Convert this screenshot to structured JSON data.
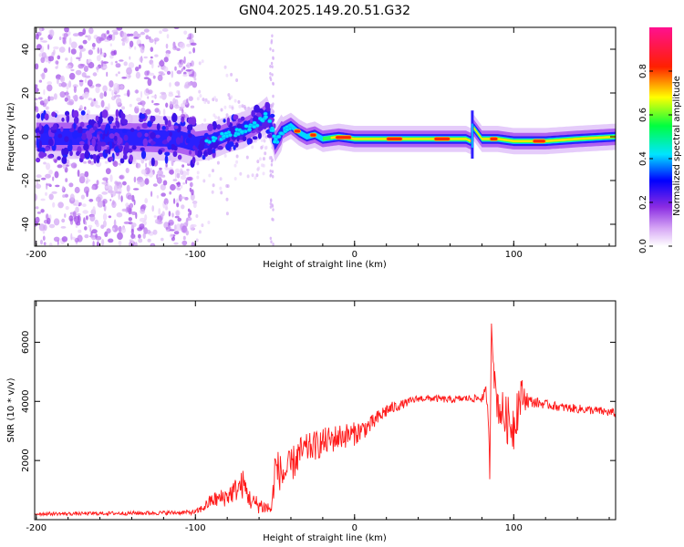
{
  "title": "GN04.2025.149.20.51.G32",
  "chart_data": [
    {
      "type": "heatmap",
      "xlabel": "Height of straight line (km)",
      "ylabel": "Frequency (Hz)",
      "xlim": [
        -201,
        164
      ],
      "ylim": [
        -50,
        50
      ],
      "x_ticks": [
        -200,
        -100,
        0,
        100
      ],
      "y_ticks": [
        -40,
        -20,
        0,
        20,
        40
      ],
      "colorbar": {
        "label": "Normalized spectral amplitude",
        "range": [
          0,
          1
        ],
        "ticks": [
          "0.0",
          "0.2",
          "0.4",
          "0.6",
          "0.8"
        ],
        "colormap": [
          "#ffffff",
          "#a020f0",
          "#0000ff",
          "#00ffff",
          "#00ff00",
          "#ffff00",
          "#ff0000",
          "#ff0080"
        ]
      },
      "ridge": {
        "x": [
          -200,
          -150,
          -110,
          -100,
          -90,
          -80,
          -70,
          -60,
          -55,
          -52,
          -50,
          -45,
          -40,
          -35,
          -30,
          -25,
          -20,
          -10,
          0,
          20,
          40,
          60,
          70,
          73,
          75,
          80,
          90,
          100,
          110,
          120,
          140,
          164
        ],
        "y": [
          0,
          0,
          -1,
          -3,
          -2,
          1,
          3,
          7,
          10,
          4,
          -3,
          3,
          5,
          2,
          0,
          1,
          -1,
          0,
          -1,
          -1,
          -1,
          -1,
          -1,
          -2,
          4,
          -1,
          -1,
          -2,
          -2,
          -2,
          -1,
          0
        ],
        "noise_region_x": [
          -201,
          -100
        ],
        "secondary_noise_x": [
          -100,
          -50
        ]
      }
    },
    {
      "type": "line",
      "xlabel": "Height of straight line (km)",
      "ylabel": "SNR (10 * v/v)",
      "xlim": [
        -201,
        164
      ],
      "ylim": [
        0,
        7400
      ],
      "x_ticks": [
        -200,
        -100,
        0,
        100
      ],
      "y_ticks": [
        2000,
        4000,
        6000
      ],
      "color": "#ff0000",
      "series": [
        {
          "x": [
            -200,
            -180,
            -160,
            -140,
            -120,
            -100,
            -95,
            -90,
            -85,
            -80,
            -75,
            -70,
            -65,
            -60,
            -55,
            -52,
            -50,
            -45,
            -40,
            -35,
            -30,
            -25,
            -20,
            -10,
            0,
            10,
            20,
            30,
            40,
            50,
            60,
            70,
            80,
            83,
            85,
            86,
            88,
            90,
            95,
            100,
            102,
            105,
            110,
            120,
            130,
            140,
            150,
            164
          ],
          "y": [
            200,
            200,
            210,
            220,
            230,
            250,
            400,
            650,
            700,
            800,
            1000,
            1200,
            600,
            500,
            400,
            350,
            1800,
            1500,
            1800,
            2200,
            2400,
            2500,
            2600,
            2800,
            2900,
            3200,
            3700,
            3900,
            4100,
            4100,
            4050,
            4100,
            4100,
            4300,
            1800,
            6800,
            4600,
            3900,
            3400,
            3200,
            3800,
            4200,
            4000,
            3900,
            3800,
            3750,
            3700,
            3600
          ],
          "noise_amp": [
            60,
            60,
            60,
            70,
            70,
            80,
            150,
            250,
            300,
            350,
            400,
            500,
            300,
            300,
            250,
            250,
            700,
            600,
            600,
            600,
            500,
            500,
            500,
            450,
            400,
            300,
            250,
            150,
            120,
            120,
            120,
            120,
            150,
            300,
            500,
            300,
            500,
            700,
            800,
            900,
            900,
            600,
            200,
            150,
            150,
            150,
            150,
            150
          ]
        }
      ]
    }
  ]
}
